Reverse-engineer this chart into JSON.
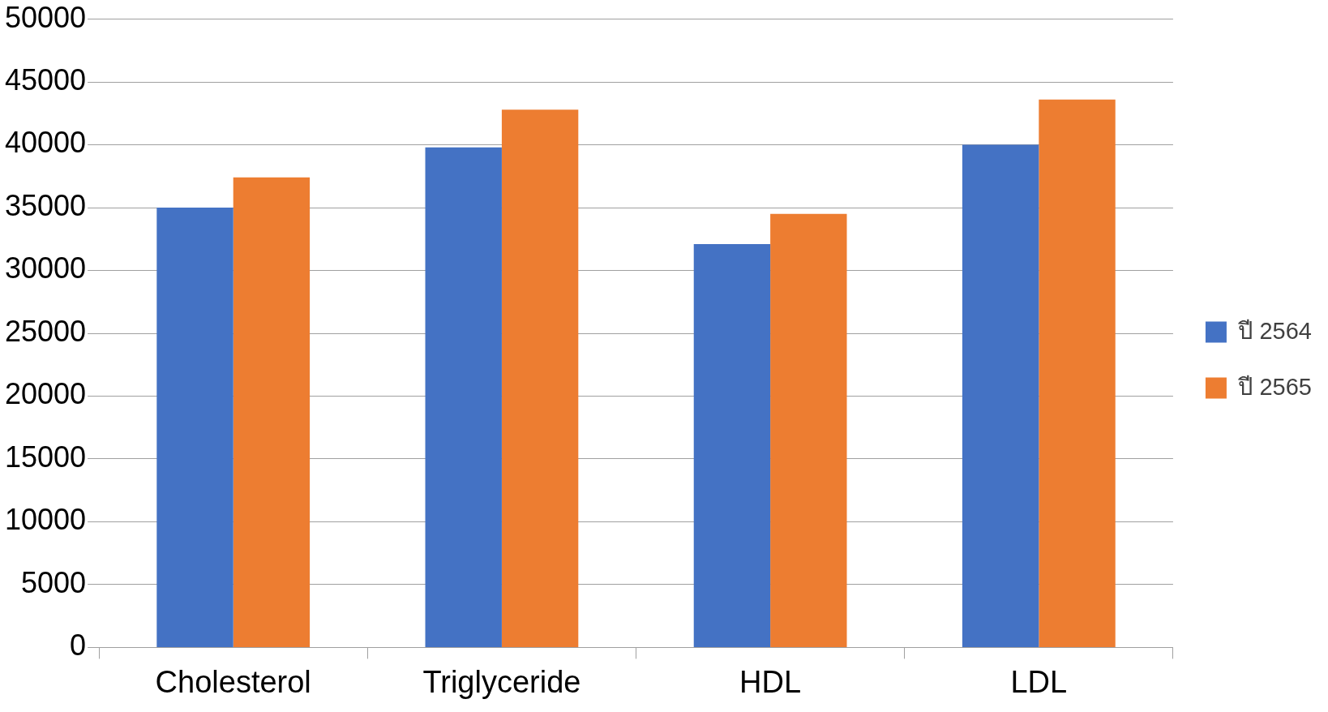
{
  "chart_data": {
    "type": "bar",
    "categories": [
      "Cholesterol",
      "Triglyceride",
      "HDL",
      "LDL"
    ],
    "series": [
      {
        "name": "ปี 2564",
        "color": "#4472c4",
        "values": [
          35000,
          39800,
          32100,
          40000
        ]
      },
      {
        "name": "ปี 2565",
        "color": "#ed7d31",
        "values": [
          37400,
          42800,
          34500,
          43600
        ]
      }
    ],
    "ylim": [
      0,
      50000
    ],
    "yticks": [
      0,
      5000,
      10000,
      15000,
      20000,
      25000,
      30000,
      35000,
      40000,
      45000,
      50000
    ],
    "grid": "y",
    "legend": "right"
  }
}
